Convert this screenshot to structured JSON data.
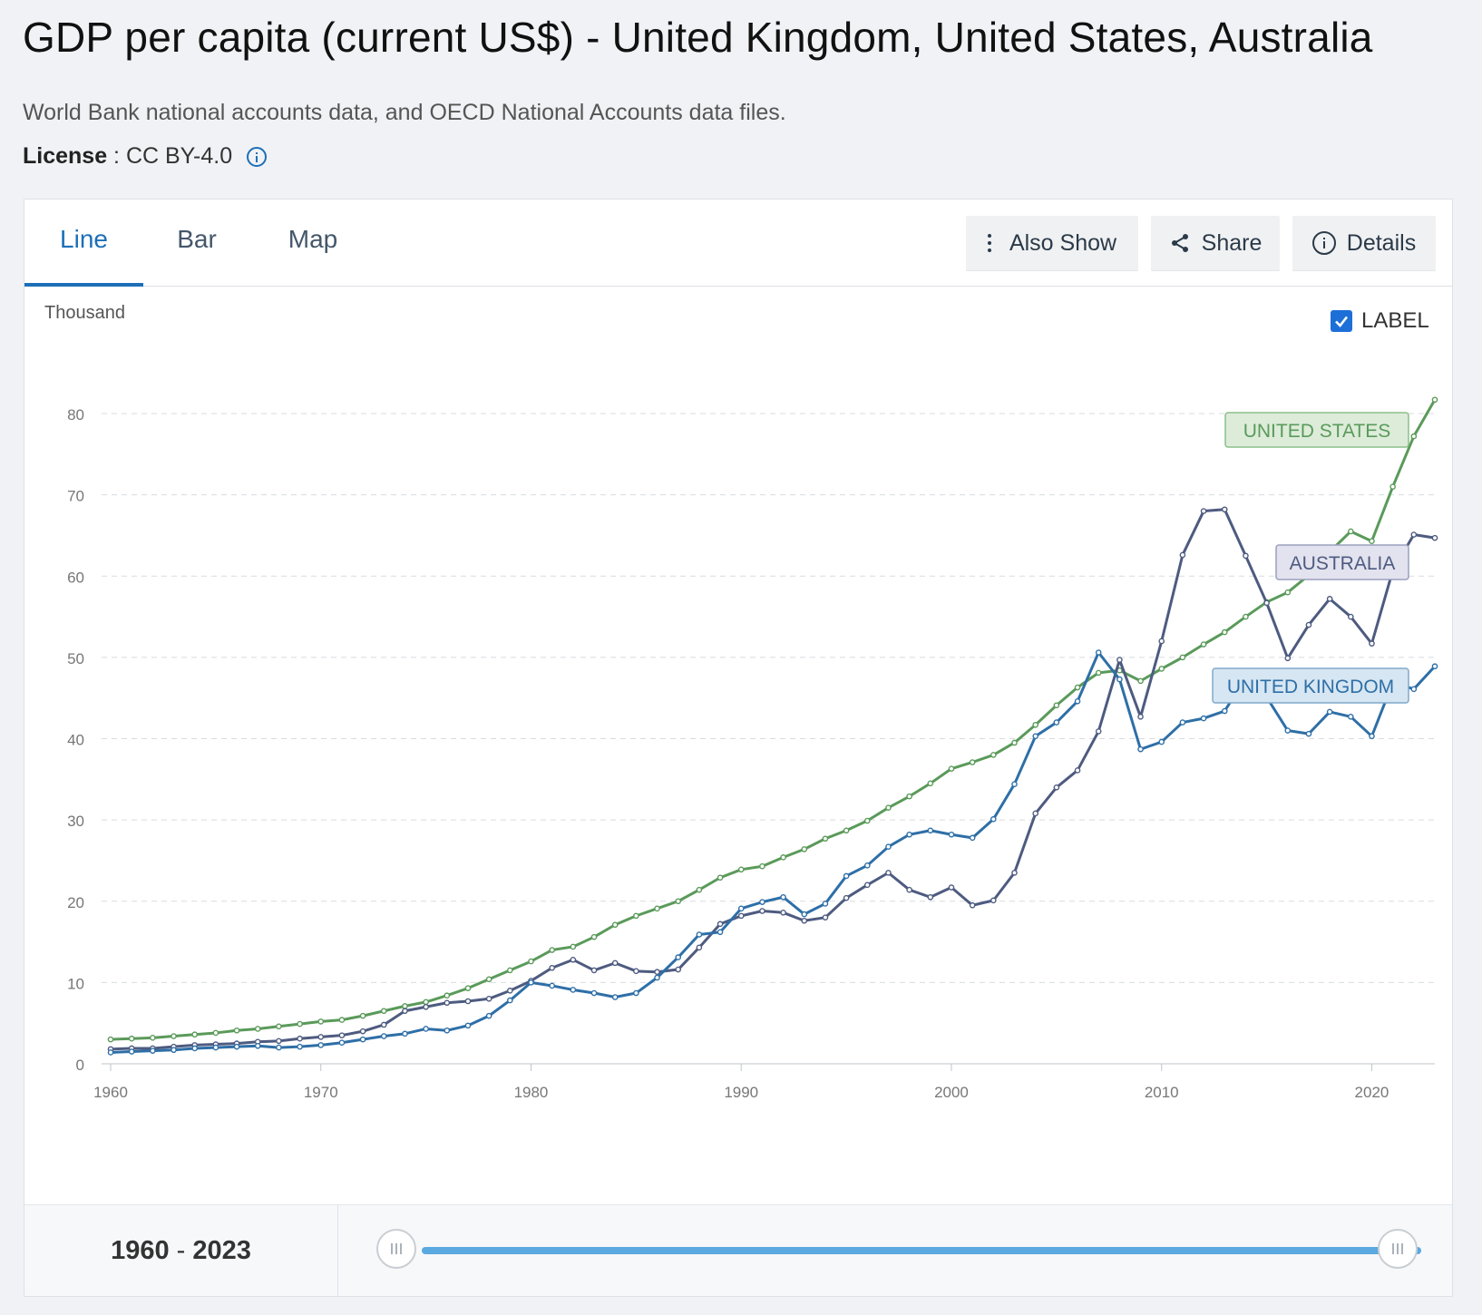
{
  "header": {
    "title": "GDP per capita (current US$) - United Kingdom, United States, Australia",
    "source": "World Bank national accounts data, and OECD National Accounts data files.",
    "license_label": "License",
    "license_sep": " : ",
    "license_value": "CC BY-4.0"
  },
  "tabs": [
    {
      "label": "Line",
      "active": true
    },
    {
      "label": "Bar",
      "active": false
    },
    {
      "label": "Map",
      "active": false
    }
  ],
  "toolbar": {
    "also_show": "Also Show",
    "share": "Share",
    "details": "Details"
  },
  "label_toggle": {
    "label": "LABEL",
    "checked": true
  },
  "range": {
    "start": "1960",
    "sep": " - ",
    "end": "2023"
  },
  "colors": {
    "united_kingdom": "#2e6fa7",
    "united_states": "#5a9a5a",
    "australia": "#4e5b80",
    "accent": "#1d6fb8"
  },
  "chart_data": {
    "type": "line",
    "ylabel": "Thousand",
    "ylim": [
      0,
      80
    ],
    "yticks": [
      0,
      10,
      20,
      30,
      40,
      50,
      60,
      70,
      80
    ],
    "xlim": [
      1960,
      2023
    ],
    "xticks": [
      1960,
      1970,
      1980,
      1990,
      2000,
      2010,
      2020
    ],
    "grid": true,
    "start_year": 1960,
    "series": [
      {
        "name": "UNITED STATES",
        "color": "#5a9a5a",
        "label_year": 2023,
        "values": [
          3.0,
          3.1,
          3.2,
          3.4,
          3.6,
          3.8,
          4.1,
          4.3,
          4.6,
          4.9,
          5.2,
          5.4,
          5.9,
          6.5,
          7.1,
          7.6,
          8.4,
          9.3,
          10.4,
          11.5,
          12.6,
          14.0,
          14.4,
          15.6,
          17.1,
          18.2,
          19.1,
          20.0,
          21.4,
          22.9,
          23.9,
          24.3,
          25.4,
          26.4,
          27.7,
          28.7,
          29.9,
          31.5,
          32.9,
          34.5,
          36.3,
          37.1,
          38.0,
          39.5,
          41.7,
          44.1,
          46.3,
          48.1,
          48.4,
          47.1,
          48.6,
          50.0,
          51.6,
          53.1,
          55.0,
          56.8,
          58.0,
          60.1,
          63.0,
          65.5,
          64.3,
          71.0,
          77.2,
          81.7
        ]
      },
      {
        "name": "AUSTRALIA",
        "color": "#4e5b80",
        "label_year": 2023,
        "values": [
          1.8,
          1.9,
          1.9,
          2.1,
          2.3,
          2.4,
          2.5,
          2.7,
          2.8,
          3.1,
          3.3,
          3.5,
          4.0,
          4.8,
          6.5,
          7.0,
          7.5,
          7.7,
          8.0,
          9.0,
          10.2,
          11.8,
          12.8,
          11.5,
          12.4,
          11.4,
          11.3,
          11.6,
          14.3,
          17.2,
          18.2,
          18.8,
          18.6,
          17.6,
          18.0,
          20.4,
          22.0,
          23.5,
          21.4,
          20.5,
          21.7,
          19.5,
          20.1,
          23.5,
          30.8,
          34.0,
          36.1,
          40.9,
          49.7,
          42.7,
          52.0,
          62.6,
          68.0,
          68.2,
          62.5,
          56.7,
          49.9,
          54.0,
          57.2,
          55.0,
          51.7,
          60.7,
          65.1,
          64.7
        ]
      },
      {
        "name": "UNITED KINGDOM",
        "color": "#2e6fa7",
        "label_year": 2023,
        "values": [
          1.4,
          1.5,
          1.6,
          1.7,
          1.9,
          2.0,
          2.1,
          2.2,
          2.0,
          2.1,
          2.3,
          2.6,
          3.0,
          3.4,
          3.7,
          4.3,
          4.1,
          4.7,
          5.9,
          7.8,
          10.0,
          9.6,
          9.1,
          8.7,
          8.2,
          8.7,
          10.6,
          13.1,
          15.9,
          16.2,
          19.1,
          19.9,
          20.5,
          18.4,
          19.7,
          23.1,
          24.4,
          26.7,
          28.2,
          28.7,
          28.2,
          27.8,
          30.1,
          34.4,
          40.3,
          42.0,
          44.6,
          50.6,
          47.3,
          38.7,
          39.6,
          42.0,
          42.5,
          43.4,
          47.5,
          45.1,
          41.0,
          40.6,
          43.3,
          42.7,
          40.3,
          46.9,
          46.1,
          48.9
        ]
      }
    ]
  }
}
